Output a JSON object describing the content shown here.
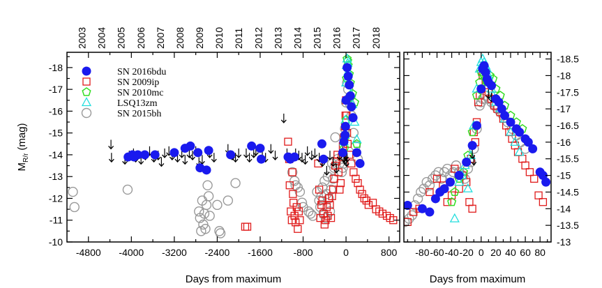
{
  "chart_data": [
    {
      "type": "scatter",
      "title": "",
      "xlabel": "Days from maximum",
      "ylabel": "M_R/r (mag)",
      "ylabel_main": "M",
      "ylabel_sub": "R/r",
      "ylabel_unit": "(mag)",
      "xlim": [
        -5200,
        1000
      ],
      "ylim": [
        -10,
        -18.7
      ],
      "y_inverted": true,
      "x_ticks": [
        -4800,
        -4000,
        -3200,
        -2400,
        -1600,
        -800,
        0,
        800
      ],
      "y_ticks": [
        -10,
        -11,
        -12,
        -13,
        -14,
        -15,
        -16,
        -17,
        -18
      ],
      "top_axis_ticks": [
        {
          "label": "2003",
          "x": -4920
        },
        {
          "label": "2004",
          "x": -4555
        },
        {
          "label": "2005",
          "x": -4190
        },
        {
          "label": "2006",
          "x": -3825
        },
        {
          "label": "2007",
          "x": -3460
        },
        {
          "label": "2008",
          "x": -3095
        },
        {
          "label": "2009",
          "x": -2730
        },
        {
          "label": "2010",
          "x": -2365
        },
        {
          "label": "2011",
          "x": -2000
        },
        {
          "label": "2012",
          "x": -1635
        },
        {
          "label": "2013",
          "x": -1270
        },
        {
          "label": "2014",
          "x": -905
        },
        {
          "label": "2015",
          "x": -540
        },
        {
          "label": "2016",
          "x": -175
        },
        {
          "label": "2017",
          "x": 190
        },
        {
          "label": "2018",
          "x": 555
        }
      ],
      "legend_position": "top-left",
      "series": [
        {
          "name": "SN 2016bdu",
          "marker": "filled-circle",
          "color": "#1a1aee",
          "x": [
            -4060,
            -3980,
            -3950,
            -3880,
            -3750,
            -3560,
            -3200,
            -3000,
            -2900,
            -2760,
            -2720,
            -2600,
            -2560,
            -2150,
            -1760,
            -1600,
            -1580,
            -1080,
            -1040,
            -960,
            -450,
            -420,
            -60,
            -40,
            -20,
            -10,
            0,
            20,
            40,
            60,
            80,
            100,
            130,
            200,
            260
          ],
          "y": [
            -13.9,
            -14.0,
            -13.9,
            -14.0,
            -14.0,
            -14.0,
            -14.1,
            -14.3,
            -14.4,
            -14.1,
            -13.4,
            -13.3,
            -14.2,
            -14.0,
            -14.4,
            -14.3,
            -13.8,
            -13.9,
            -13.8,
            -13.9,
            -14.5,
            -13.8,
            -14.1,
            -14.6,
            -14.9,
            -15.3,
            -16.5,
            -18.0,
            -17.6,
            -17.2,
            -16.7,
            -16.2,
            -15.7,
            -14.1,
            -13.6
          ]
        },
        {
          "name": "SN 2009ip",
          "marker": "open-square",
          "color": "#e01a1a",
          "x": [
            -1880,
            -1840,
            -1080,
            -1060,
            -1050,
            -1030,
            -1010,
            -1000,
            -990,
            -980,
            -960,
            -940,
            -920,
            -900,
            -880,
            -860,
            -520,
            -500,
            -480,
            -460,
            -440,
            -420,
            -400,
            -380,
            -360,
            -340,
            -320,
            -300,
            -280,
            -260,
            -240,
            -220,
            -200,
            -180,
            -160,
            -140,
            -120,
            -100,
            -80,
            -60,
            -40,
            -20,
            -10,
            0,
            10,
            20,
            30,
            60,
            100,
            140,
            180,
            220,
            260,
            300,
            340,
            380,
            420,
            500,
            560,
            620,
            680,
            760,
            820,
            880
          ],
          "y": [
            -10.7,
            -10.7,
            -14.6,
            -13.8,
            -12.6,
            -11.4,
            -11.0,
            -13.2,
            -12.2,
            -11.8,
            -11.2,
            -10.9,
            -11.6,
            -10.6,
            -11.4,
            -11.0,
            -13.6,
            -12.4,
            -11.1,
            -11.7,
            -11.9,
            -11.3,
            -10.8,
            -11.0,
            -11.6,
            -11.2,
            -12.0,
            -11.7,
            -11.1,
            -12.1,
            -12.4,
            -12.9,
            -13.5,
            -13.7,
            -14.0,
            -13.2,
            -12.4,
            -12.7,
            -13.9,
            -14.4,
            -14.8,
            -15.3,
            -15.8,
            -16.5,
            -15.8,
            -15.0,
            -14.5,
            -14.0,
            -13.6,
            -13.2,
            -12.9,
            -12.7,
            -12.4,
            -12.2,
            -12.0,
            -11.9,
            -11.7,
            -11.8,
            -11.5,
            -11.4,
            -11.3,
            -11.2,
            -11.1,
            -11.0
          ]
        },
        {
          "name": "SN 2010mc",
          "marker": "open-pentagon",
          "color": "#33dd22",
          "x": [
            -30,
            -15,
            0,
            10,
            20,
            30,
            40,
            60,
            80,
            120,
            160,
            200
          ],
          "y": [
            -14.3,
            -14.8,
            -15.6,
            -17.5,
            -18.4,
            -18.3,
            -18.1,
            -17.7,
            -17.3,
            -16.8,
            -16.4,
            -14.5
          ],
          "label_x": 180,
          "label_y": -14.2
        },
        {
          "name": "LSQ13zm",
          "marker": "open-triangle",
          "color": "#22dddd",
          "x": [
            -40,
            -20,
            -10,
            0,
            10,
            20,
            30,
            40,
            60,
            90,
            120,
            160,
            200
          ],
          "y": [
            -14.6,
            -14.9,
            -15.6,
            -17.3,
            -18.1,
            -18.4,
            -18.2,
            -17.8,
            -17.3,
            -16.8,
            -16.3,
            -15.5,
            -14.7
          ]
        },
        {
          "name": "SN 2015bh",
          "marker": "open-circle",
          "color": "#999999",
          "x": [
            -5090,
            -5060,
            -4070,
            -2740,
            -2720,
            -2700,
            -2680,
            -2660,
            -2640,
            -2620,
            -2600,
            -2580,
            -2560,
            -2540,
            -2400,
            -2360,
            -2340,
            -2200,
            -2060,
            -1000,
            -960,
            -940,
            -900,
            -860,
            -820,
            -800,
            -700,
            -660,
            -620,
            -540,
            -500,
            -480,
            -460,
            -440,
            -420,
            -400,
            -380,
            -360,
            -340,
            -320,
            -300,
            -280,
            -260,
            -240,
            -220,
            -200,
            -160,
            -120,
            -80,
            -60,
            -40,
            -20,
            0,
            20,
            40,
            60,
            80,
            100,
            140,
            180,
            220
          ],
          "y": [
            -12.3,
            -11.6,
            -12.4,
            -11.4,
            -11.1,
            -10.5,
            -11.9,
            -10.8,
            -11.3,
            -10.6,
            -11.7,
            -12.6,
            -12.1,
            -11.2,
            -11.7,
            -10.5,
            -10.4,
            -11.9,
            -12.7,
            -13.2,
            -12.8,
            -12.6,
            -12.5,
            -12.3,
            -11.8,
            -11.6,
            -11.4,
            -11.3,
            -11.2,
            -12.3,
            -11.9,
            -11.6,
            -12.1,
            -12.5,
            -11.3,
            -12.8,
            -11.1,
            -12.2,
            -13.0,
            -12.0,
            -11.4,
            -12.4,
            -13.6,
            -12.9,
            -13.4,
            -14.8,
            -13.8,
            -13.6,
            -13.2,
            -13.4,
            -13.6,
            -15.2,
            -16.4,
            -17.3,
            -17.0,
            -16.6,
            -16.3,
            -15.8,
            -15.0,
            -14.4,
            -13.8
          ]
        },
        {
          "name": "upper limits",
          "marker": "down-arrow",
          "color": "#000000",
          "x": [
            -4380,
            -4370,
            -4120,
            -4040,
            -3960,
            -3920,
            -3820,
            -3740,
            -3660,
            -3580,
            -3500,
            -3440,
            -3380,
            -3300,
            -3240,
            -3140,
            -3060,
            -3000,
            -2920,
            -2860,
            -2800,
            -2740,
            -2680,
            -2540,
            -2460,
            -2200,
            -2120,
            -2060,
            -2000,
            -1860,
            -1800,
            -1720,
            -1680,
            -1560,
            -1500,
            -1400,
            -1320,
            -1160,
            -1100,
            -1040,
            -940,
            -880,
            -820,
            -760,
            -720,
            -640,
            -580,
            -500,
            -440,
            -360,
            -300,
            -240,
            -180,
            -120,
            -60,
            -40,
            -20,
            0,
            10,
            20
          ],
          "y": [
            -14.4,
            -13.8,
            -13.7,
            -13.9,
            -14.0,
            -13.8,
            -13.7,
            -13.9,
            -14.1,
            -13.8,
            -13.9,
            -13.6,
            -14.0,
            -14.1,
            -13.9,
            -13.8,
            -14.0,
            -13.7,
            -14.0,
            -13.9,
            -14.1,
            -13.6,
            -13.7,
            -14.0,
            -13.8,
            -14.2,
            -13.9,
            -13.8,
            -14.0,
            -14.0,
            -13.8,
            -14.0,
            -14.1,
            -13.9,
            -13.8,
            -14.2,
            -13.9,
            -15.6,
            -14.0,
            -13.8,
            -14.0,
            -13.9,
            -13.8,
            -13.7,
            -14.1,
            -13.9,
            -14.0,
            -13.8,
            -13.6,
            -13.2,
            -13.9,
            -13.6,
            -13.3,
            -13.9,
            -14.1,
            -13.8,
            -13.7,
            -13.9,
            -13.6,
            -13.8
          ]
        }
      ]
    },
    {
      "type": "scatter",
      "title": "",
      "xlabel": "Days from maximum",
      "ylabel": "",
      "xlim": [
        -105,
        95
      ],
      "ylim": [
        -13.0,
        -18.7
      ],
      "y_inverted": true,
      "x_ticks": [
        -80,
        -60,
        -40,
        -20,
        0,
        20,
        40,
        60,
        80
      ],
      "y_ticks": [
        -13,
        -13.5,
        -14,
        -14.5,
        -15,
        -15.5,
        -16,
        -16.5,
        -17,
        -17.5,
        -18,
        -18.5
      ],
      "y_tick_labels": [
        "-13",
        "-13.5",
        "-14",
        "-14.5",
        "-15",
        "-15.5",
        "-16",
        "-16.5",
        "-17",
        "-17.5",
        "-18",
        "-18.5"
      ],
      "y_axis_side": "right",
      "series": [
        {
          "name": "SN 2016bdu",
          "marker": "filled-circle",
          "color": "#1a1aee",
          "x": [
            -100,
            -80,
            -70,
            -62,
            -56,
            -50,
            -42,
            -30,
            -20,
            -12,
            -6,
            0,
            2,
            4,
            6,
            8,
            10,
            14,
            20,
            24,
            28,
            32,
            40,
            48,
            52,
            60,
            64,
            70,
            80,
            84,
            88
          ],
          "y": [
            -14.1,
            -14.0,
            -13.9,
            -14.3,
            -14.5,
            -14.6,
            -14.8,
            -15.0,
            -15.4,
            -15.9,
            -16.5,
            -17.6,
            -18.2,
            -18.3,
            -18.1,
            -17.9,
            -17.8,
            -17.7,
            -17.3,
            -17.2,
            -17.0,
            -16.8,
            -16.6,
            -16.4,
            -16.3,
            -16.1,
            -16.0,
            -15.8,
            -15.1,
            -15.0,
            -14.8
          ]
        },
        {
          "name": "SN 2009ip",
          "marker": "open-square",
          "color": "#e01a1a",
          "x": [
            -100,
            -92,
            -84,
            -70,
            -60,
            -52,
            -46,
            -40,
            -36,
            -30,
            -24,
            -20,
            -16,
            -14,
            -12,
            -10,
            -8,
            -6,
            -4,
            -2,
            0,
            2,
            6,
            10,
            14,
            18,
            22,
            26,
            30,
            34,
            38,
            42,
            46,
            50,
            56,
            60,
            66,
            72,
            78,
            84
          ],
          "y": [
            -13.6,
            -13.9,
            -14.0,
            -14.5,
            -14.9,
            -14.7,
            -14.2,
            -14.4,
            -15.2,
            -14.6,
            -15.0,
            -14.8,
            -14.2,
            -15.5,
            -14.0,
            -16.3,
            -16.0,
            -16.6,
            -17.2,
            -17.4,
            -17.6,
            -18.0,
            -17.8,
            -17.5,
            -17.3,
            -17.1,
            -17.0,
            -16.9,
            -16.7,
            -16.5,
            -16.3,
            -16.1,
            -15.9,
            -15.7,
            -15.5,
            -15.3,
            -15.1,
            -14.9,
            -14.4,
            -14.2
          ]
        },
        {
          "name": "SN 2010mc",
          "marker": "open-pentagon",
          "color": "#33dd22",
          "x": [
            -40,
            -36,
            -30,
            -24,
            -18,
            -12,
            -6,
            -2,
            0,
            2,
            4,
            6,
            8,
            12,
            16,
            20,
            26,
            32,
            40,
            48,
            56
          ],
          "y": [
            -14.2,
            -14.5,
            -14.9,
            -15.1,
            -15.6,
            -16.3,
            -17.4,
            -17.8,
            -18.1,
            -18.2,
            -18.0,
            -17.9,
            -17.8,
            -18.0,
            -17.9,
            -17.6,
            -17.4,
            -17.1,
            -16.8,
            -16.6,
            -16.4
          ]
        },
        {
          "name": "LSQ13zm",
          "marker": "open-triangle",
          "color": "#22dddd",
          "x": [
            -36,
            -30,
            -26,
            -22,
            -18,
            -14,
            -10,
            -6,
            -2,
            0,
            2,
            4,
            6,
            8,
            10,
            12,
            14,
            16,
            20,
            26,
            32,
            40,
            46,
            52
          ],
          "y": [
            -13.7,
            -14.8,
            -15.0,
            -15.3,
            -14.6,
            -15.6,
            -16.5,
            -17.6,
            -18.2,
            -18.4,
            -18.5,
            -18.4,
            -18.3,
            -18.2,
            -18.0,
            -17.8,
            -17.6,
            -17.4,
            -17.2,
            -17.0,
            -16.7,
            -16.3,
            -16.0,
            -15.7
          ]
        },
        {
          "name": "SN 2015bh",
          "marker": "open-circle",
          "color": "#999999",
          "x": [
            -104,
            -98,
            -94,
            -90,
            -86,
            -82,
            -78,
            -74,
            -70,
            -66,
            -62,
            -58,
            -54,
            -50,
            -46,
            -42,
            -38,
            -34,
            -30,
            -26,
            -22,
            -18,
            -14,
            -10,
            -6,
            -2,
            0,
            2,
            6,
            10,
            14,
            18,
            22,
            26,
            30,
            36,
            42,
            48,
            54,
            60
          ],
          "y": [
            -13.6,
            -13.7,
            -13.8,
            -14.1,
            -14.3,
            -14.5,
            -14.6,
            -14.8,
            -14.7,
            -14.9,
            -15.0,
            -15.1,
            -14.9,
            -15.1,
            -15.2,
            -15.0,
            -15.1,
            -15.3,
            -15.1,
            -15.0,
            -14.9,
            -15.2,
            -15.4,
            -15.8,
            -16.4,
            -17.1,
            -17.2,
            -17.3,
            -17.4,
            -17.3,
            -17.2,
            -17.1,
            -17.0,
            -16.9,
            -16.8,
            -16.6,
            -16.4,
            -16.2,
            -16.0,
            -15.8
          ]
        },
        {
          "name": "upper limits",
          "marker": "down-arrow",
          "color": "#000000",
          "x": [
            -12,
            -10,
            10,
            14
          ],
          "y": [
            -15.6,
            -15.4,
            -17.4,
            -17.3
          ]
        }
      ]
    }
  ]
}
